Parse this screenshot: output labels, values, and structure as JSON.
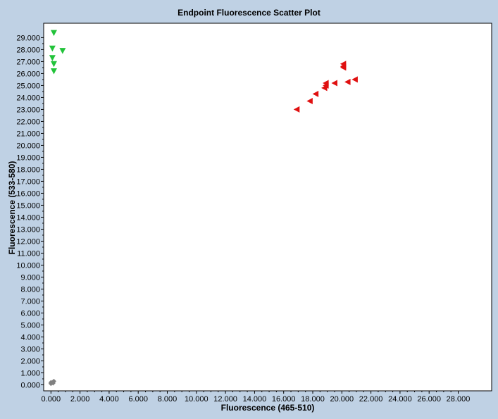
{
  "chart_data": {
    "type": "scatter",
    "title": "Endpoint Fluorescence Scatter Plot",
    "xlabel": "Fluorescence (465-510)",
    "ylabel": "Fluorescence (533-580)",
    "xlim": [
      -0.5,
      30.3
    ],
    "ylim": [
      -0.5,
      30.2
    ],
    "x_ticks": [
      "0.000",
      "2.000",
      "4.000",
      "6.000",
      "8.000",
      "10.000",
      "12.000",
      "14.000",
      "16.000",
      "18.000",
      "20.000",
      "22.000",
      "24.000",
      "26.000",
      "28.000"
    ],
    "y_ticks": [
      "0.000",
      "1.000",
      "2.000",
      "3.000",
      "4.000",
      "5.000",
      "6.000",
      "7.000",
      "8.000",
      "9.000",
      "10.000",
      "11.000",
      "12.000",
      "13.000",
      "14.000",
      "15.000",
      "16.000",
      "17.000",
      "18.000",
      "19.000",
      "20.000",
      "21.000",
      "22.000",
      "23.000",
      "24.000",
      "25.000",
      "26.000",
      "27.000",
      "28.000",
      "29.000"
    ],
    "series": [
      {
        "marker": "triangle-down",
        "color": "#22c33a",
        "points": [
          {
            "x": 0.2,
            "y": 29.4
          },
          {
            "x": 0.1,
            "y": 28.1
          },
          {
            "x": 0.8,
            "y": 27.9
          },
          {
            "x": 0.1,
            "y": 27.3
          },
          {
            "x": 0.2,
            "y": 26.8
          },
          {
            "x": 0.2,
            "y": 26.2
          }
        ]
      },
      {
        "marker": "triangle-left",
        "color": "#e01010",
        "points": [
          {
            "x": 20.1,
            "y": 26.8
          },
          {
            "x": 20.1,
            "y": 26.6
          },
          {
            "x": 20.1,
            "y": 26.5
          },
          {
            "x": 20.9,
            "y": 25.5
          },
          {
            "x": 20.4,
            "y": 25.3
          },
          {
            "x": 19.5,
            "y": 25.2
          },
          {
            "x": 18.9,
            "y": 25.2
          },
          {
            "x": 18.9,
            "y": 25.0
          },
          {
            "x": 18.8,
            "y": 24.8
          },
          {
            "x": 18.2,
            "y": 24.3
          },
          {
            "x": 17.8,
            "y": 23.7
          },
          {
            "x": 16.9,
            "y": 23.0
          }
        ]
      },
      {
        "marker": "diamond",
        "color": "#808080",
        "points": [
          {
            "x": 0.0,
            "y": 0.1
          },
          {
            "x": 0.1,
            "y": 0.2
          },
          {
            "x": 0.2,
            "y": 0.3
          },
          {
            "x": 0.0,
            "y": 0.2
          },
          {
            "x": 0.15,
            "y": 0.15
          }
        ]
      }
    ]
  }
}
